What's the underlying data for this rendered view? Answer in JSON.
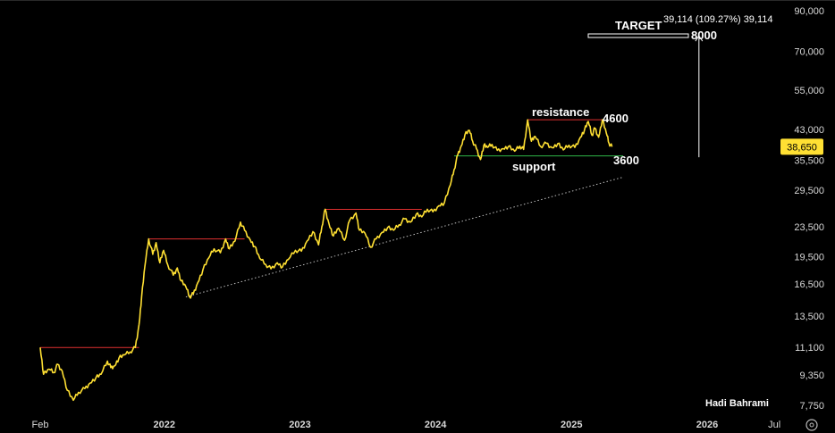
{
  "chart_data": {
    "type": "line",
    "y_scale": "log",
    "ylim": [
      7750,
      90000
    ],
    "grid": false,
    "y_ticks": [
      7750,
      9350,
      11100,
      13500,
      16500,
      19500,
      23500,
      29500,
      35500,
      43000,
      55000,
      70000,
      90000
    ],
    "y_tick_labels": [
      "7,750",
      "9,350",
      "11,100",
      "13,500",
      "16,500",
      "19,500",
      "23,500",
      "29,500",
      "35,500",
      "43,000",
      "55,000",
      "70,000",
      "90,000"
    ],
    "x_range": [
      "2021-01-20",
      "2026-07-15"
    ],
    "x_ticks": [
      {
        "date": "2021-02-01",
        "label": "Feb",
        "bold": false
      },
      {
        "date": "2022-01-01",
        "label": "2022",
        "bold": true
      },
      {
        "date": "2023-01-01",
        "label": "2023",
        "bold": true
      },
      {
        "date": "2024-01-01",
        "label": "2024",
        "bold": true
      },
      {
        "date": "2025-01-01",
        "label": "2025",
        "bold": true
      },
      {
        "date": "2026-01-01",
        "label": "2026",
        "bold": true
      },
      {
        "date": "2026-07-01",
        "label": "Jul",
        "bold": false
      }
    ],
    "series": [
      {
        "color": "#ffe033",
        "points": [
          [
            "2021-02-01",
            11100
          ],
          [
            "2021-02-10",
            9400
          ],
          [
            "2021-02-25",
            9700
          ],
          [
            "2021-03-10",
            9500
          ],
          [
            "2021-03-20",
            10000
          ],
          [
            "2021-04-01",
            9600
          ],
          [
            "2021-04-15",
            8500
          ],
          [
            "2021-05-01",
            8000
          ],
          [
            "2021-05-15",
            8400
          ],
          [
            "2021-06-01",
            8600
          ],
          [
            "2021-06-15",
            8900
          ],
          [
            "2021-07-01",
            9200
          ],
          [
            "2021-07-15",
            9400
          ],
          [
            "2021-08-01",
            10200
          ],
          [
            "2021-08-10",
            9800
          ],
          [
            "2021-08-20",
            9900
          ],
          [
            "2021-09-01",
            10400
          ],
          [
            "2021-09-15",
            10600
          ],
          [
            "2021-10-01",
            10800
          ],
          [
            "2021-10-15",
            11100
          ],
          [
            "2021-10-25",
            12800
          ],
          [
            "2021-11-01",
            15200
          ],
          [
            "2021-11-10",
            18500
          ],
          [
            "2021-11-20",
            21800
          ],
          [
            "2021-12-01",
            19800
          ],
          [
            "2021-12-10",
            21300
          ],
          [
            "2021-12-20",
            18800
          ],
          [
            "2021-12-30",
            20300
          ],
          [
            "2022-01-10",
            18600
          ],
          [
            "2022-01-25",
            17400
          ],
          [
            "2022-02-05",
            18200
          ],
          [
            "2022-02-15",
            16800
          ],
          [
            "2022-02-28",
            16200
          ],
          [
            "2022-03-10",
            15200
          ],
          [
            "2022-03-20",
            15500
          ],
          [
            "2022-04-01",
            16600
          ],
          [
            "2022-04-15",
            18000
          ],
          [
            "2022-05-01",
            19400
          ],
          [
            "2022-05-15",
            20500
          ],
          [
            "2022-06-01",
            20000
          ],
          [
            "2022-06-15",
            21800
          ],
          [
            "2022-06-25",
            20500
          ],
          [
            "2022-07-10",
            21500
          ],
          [
            "2022-07-25",
            24200
          ],
          [
            "2022-08-05",
            23000
          ],
          [
            "2022-08-20",
            21700
          ],
          [
            "2022-09-01",
            20800
          ],
          [
            "2022-09-15",
            19300
          ],
          [
            "2022-10-01",
            18600
          ],
          [
            "2022-10-15",
            18100
          ],
          [
            "2022-11-01",
            18800
          ],
          [
            "2022-11-15",
            18300
          ],
          [
            "2022-12-01",
            19200
          ],
          [
            "2022-12-20",
            20300
          ],
          [
            "2023-01-05",
            20200
          ],
          [
            "2023-01-20",
            21500
          ],
          [
            "2023-02-05",
            22800
          ],
          [
            "2023-02-20",
            21000
          ],
          [
            "2023-03-01",
            23500
          ],
          [
            "2023-03-10",
            26200
          ],
          [
            "2023-03-20",
            24000
          ],
          [
            "2023-04-01",
            22200
          ],
          [
            "2023-04-15",
            23300
          ],
          [
            "2023-05-01",
            21600
          ],
          [
            "2023-05-15",
            24500
          ],
          [
            "2023-06-01",
            25600
          ],
          [
            "2023-06-10",
            23000
          ],
          [
            "2023-06-25",
            22600
          ],
          [
            "2023-07-10",
            20700
          ],
          [
            "2023-07-25",
            21800
          ],
          [
            "2023-08-10",
            22700
          ],
          [
            "2023-08-25",
            23400
          ],
          [
            "2023-09-10",
            23000
          ],
          [
            "2023-09-25",
            23800
          ],
          [
            "2023-10-10",
            24700
          ],
          [
            "2023-10-25",
            24200
          ],
          [
            "2023-11-10",
            25400
          ],
          [
            "2023-11-25",
            25000
          ],
          [
            "2023-12-10",
            26200
          ],
          [
            "2023-12-25",
            25800
          ],
          [
            "2024-01-10",
            26800
          ],
          [
            "2024-01-25",
            27300
          ],
          [
            "2024-02-10",
            30500
          ],
          [
            "2024-02-20",
            33500
          ],
          [
            "2024-03-01",
            36800
          ],
          [
            "2024-03-10",
            38800
          ],
          [
            "2024-03-20",
            41600
          ],
          [
            "2024-04-01",
            42800
          ],
          [
            "2024-04-10",
            40000
          ],
          [
            "2024-04-20",
            38200
          ],
          [
            "2024-05-01",
            35700
          ],
          [
            "2024-05-10",
            39000
          ],
          [
            "2024-05-20",
            38500
          ],
          [
            "2024-06-01",
            39200
          ],
          [
            "2024-06-15",
            37800
          ],
          [
            "2024-07-01",
            38200
          ],
          [
            "2024-07-15",
            38700
          ],
          [
            "2024-08-01",
            37600
          ],
          [
            "2024-08-15",
            38800
          ],
          [
            "2024-08-25",
            38000
          ],
          [
            "2024-09-05",
            45700
          ],
          [
            "2024-09-15",
            40000
          ],
          [
            "2024-09-25",
            41200
          ],
          [
            "2024-10-10",
            38700
          ],
          [
            "2024-10-25",
            39500
          ],
          [
            "2024-11-10",
            38400
          ],
          [
            "2024-11-25",
            39400
          ],
          [
            "2024-12-10",
            37900
          ],
          [
            "2024-12-25",
            39000
          ],
          [
            "2025-01-10",
            38500
          ],
          [
            "2025-01-25",
            41000
          ],
          [
            "2025-02-05",
            42900
          ],
          [
            "2025-02-15",
            45200
          ],
          [
            "2025-02-25",
            41500
          ],
          [
            "2025-03-05",
            43400
          ],
          [
            "2025-03-15",
            41000
          ],
          [
            "2025-03-25",
            45700
          ],
          [
            "2025-04-05",
            42000
          ],
          [
            "2025-04-12",
            39500
          ],
          [
            "2025-04-20",
            38650
          ]
        ]
      }
    ],
    "last_value": 38650,
    "last_value_label": "38,650",
    "resistance_lines": [
      {
        "x0": "2021-02-01",
        "x1": "2021-10-25",
        "y": 11100
      },
      {
        "x0": "2021-11-20",
        "x1": "2022-08-05",
        "y": 21800
      },
      {
        "x0": "2023-03-10",
        "x1": "2023-11-25",
        "y": 26200
      },
      {
        "x0": "2024-09-05",
        "x1": "2025-03-25",
        "y": 45700
      }
    ],
    "support_line": {
      "x0": "2024-02-20",
      "x1": "2025-05-20",
      "y": 36500
    },
    "trendline": {
      "x0": "2022-02-28",
      "y0": 15200,
      "x1": "2025-05-20",
      "y1": 32000
    },
    "projection_arrow": {
      "date": "2025-12-10",
      "y_from": 36200,
      "y_to": 77000
    },
    "annotations": {
      "resistance": "resistance",
      "resistance_value": "4600",
      "support": "support",
      "support_value": "3600",
      "target": "TARGET",
      "target_value": "8000",
      "target_measure": "39,114 (109.27%) 39,114",
      "author": "Hadi Bahrami"
    },
    "colors": {
      "price_line": "#ffe033",
      "resistance": "#e03030",
      "support": "#2fb84a",
      "trendline": "#bdbdbd",
      "last_value_badge": "#ffe033"
    }
  }
}
